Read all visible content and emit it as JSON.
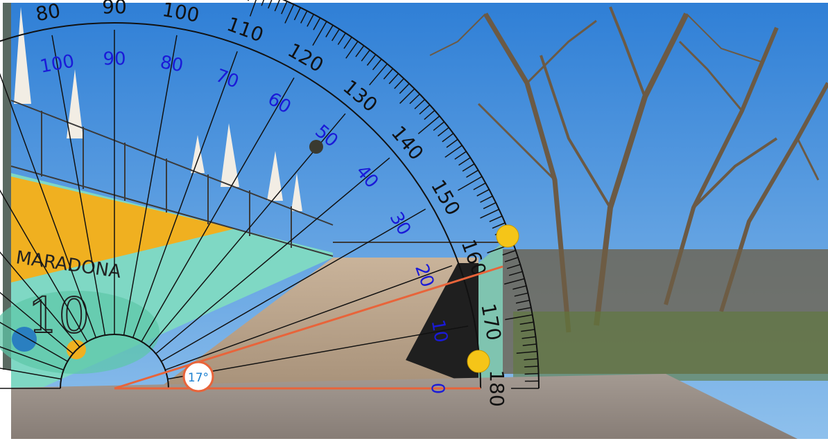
{
  "protractor": {
    "outer_scale": {
      "visible_labels": [
        "80",
        "90",
        "100",
        "110",
        "120",
        "130",
        "140",
        "150",
        "160",
        "170",
        "180"
      ],
      "color": "#111111"
    },
    "inner_scale": {
      "visible_labels": [
        "0",
        "10",
        "20",
        "30",
        "40",
        "50",
        "60",
        "70",
        "80",
        "90",
        "100",
        "0"
      ],
      "color": "#1a1ad8"
    }
  },
  "measurement": {
    "angle_label": "17°",
    "angle_value_degrees": 17,
    "line_color": "#e8643a",
    "handle_color": "#f5c518"
  },
  "scene": {
    "wall_text": "MARADONA",
    "wall_number": "10",
    "sky_color": "#3f8fe0",
    "wall_yellow": "#f0b020",
    "wall_mint": "#7fd8c4"
  }
}
